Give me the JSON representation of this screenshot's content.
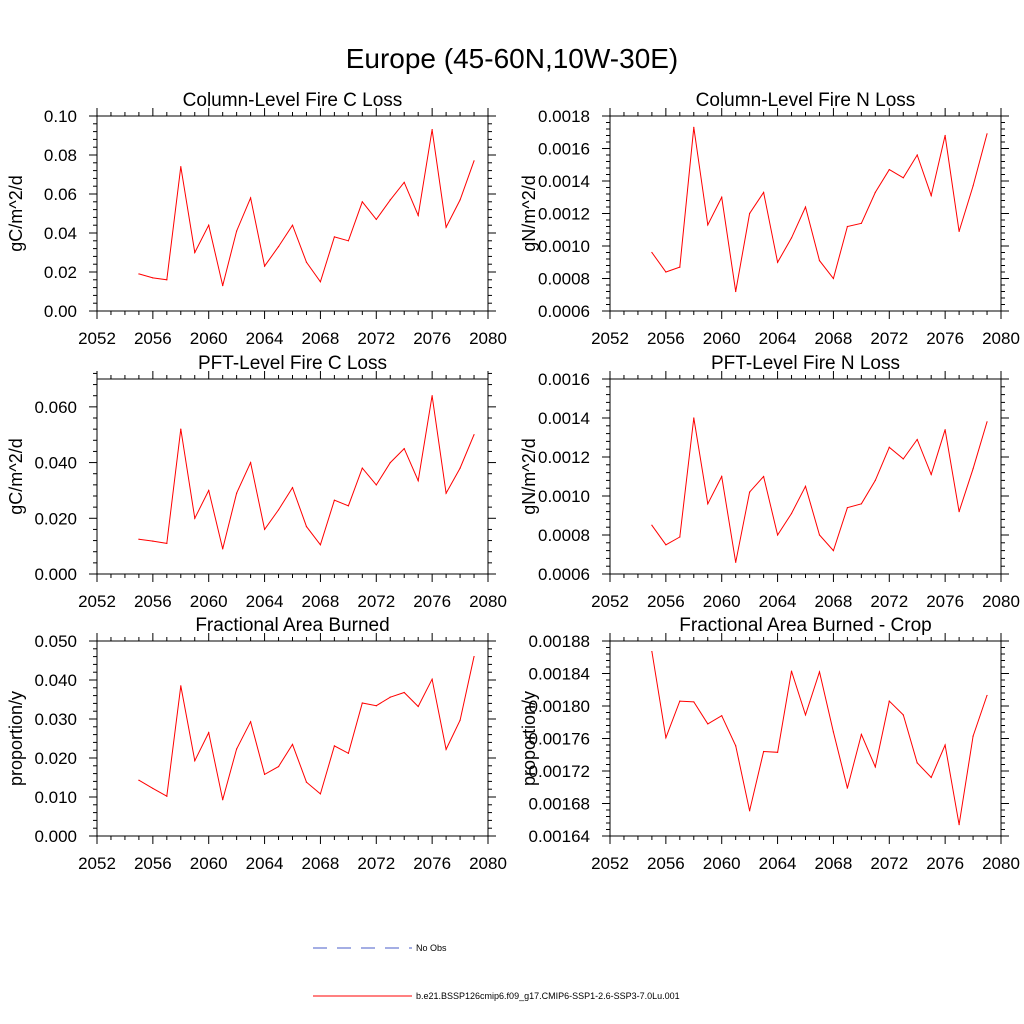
{
  "figure_title": "Europe (45-60N,10W-30E)",
  "legend": [
    {
      "label": "No Obs",
      "color": "#4a5cc8",
      "dash": true
    },
    {
      "label": "b.e21.BSSP126cmip6.f09_g17.CMIP6-SSP1-2.6-SSP3-7.0Lu.001",
      "color": "#ff0000",
      "dash": false
    }
  ],
  "chart_data": [
    {
      "type": "line",
      "title": "Column-Level Fire C Loss",
      "ylabel": "gC/m^2/d",
      "xlim": [
        2052,
        2080
      ],
      "xticks": [
        "2052",
        "2056",
        "2060",
        "2064",
        "2068",
        "2072",
        "2076",
        "2080"
      ],
      "ylim": [
        0.0,
        0.1
      ],
      "yticks": [
        "0.00",
        "0.02",
        "0.04",
        "0.06",
        "0.08",
        "0.10"
      ],
      "series": [
        {
          "color": "#ff0000",
          "x": [
            2055,
            2056,
            2057,
            2058,
            2059,
            2060,
            2061,
            2062,
            2063,
            2064,
            2065,
            2066,
            2067,
            2068,
            2069,
            2070,
            2071,
            2072,
            2073,
            2074,
            2075,
            2076,
            2077,
            2078,
            2079
          ],
          "y": [
            0.019,
            0.017,
            0.016,
            0.074,
            0.03,
            0.044,
            0.013,
            0.041,
            0.058,
            0.023,
            0.033,
            0.044,
            0.025,
            0.015,
            0.038,
            0.036,
            0.056,
            0.047,
            0.057,
            0.066,
            0.049,
            0.093,
            0.043,
            0.057,
            0.077
          ]
        }
      ]
    },
    {
      "type": "line",
      "title": "Column-Level Fire N Loss",
      "ylabel": "gN/m^2/d",
      "xlim": [
        2052,
        2080
      ],
      "xticks": [
        "2052",
        "2056",
        "2060",
        "2064",
        "2068",
        "2072",
        "2076",
        "2080"
      ],
      "ylim": [
        0.0006,
        0.0018
      ],
      "yticks": [
        "0.0006",
        "0.0008",
        "0.0010",
        "0.0012",
        "0.0014",
        "0.0016",
        "0.0018"
      ],
      "series": [
        {
          "color": "#ff0000",
          "x": [
            2055,
            2056,
            2057,
            2058,
            2059,
            2060,
            2061,
            2062,
            2063,
            2064,
            2065,
            2066,
            2067,
            2068,
            2069,
            2070,
            2071,
            2072,
            2073,
            2074,
            2075,
            2076,
            2077,
            2078,
            2079
          ],
          "y": [
            0.00096,
            0.00084,
            0.00087,
            0.00173,
            0.00113,
            0.0013,
            0.00072,
            0.0012,
            0.00133,
            0.0009,
            0.00105,
            0.00124,
            0.00091,
            0.0008,
            0.00112,
            0.00114,
            0.00133,
            0.00147,
            0.00142,
            0.00156,
            0.00131,
            0.00168,
            0.00109,
            0.00137,
            0.00169
          ]
        }
      ]
    },
    {
      "type": "line",
      "title": "PFT-Level Fire C Loss",
      "ylabel": "gC/m^2/d",
      "xlim": [
        2052,
        2080
      ],
      "xticks": [
        "2052",
        "2056",
        "2060",
        "2064",
        "2068",
        "2072",
        "2076",
        "2080"
      ],
      "ylim": [
        0.0,
        0.07
      ],
      "yticks": [
        "0.000",
        "0.020",
        "0.040",
        "0.060"
      ],
      "ytick_values": [
        0.0,
        0.02,
        0.04,
        0.06
      ],
      "series": [
        {
          "color": "#ff0000",
          "x": [
            2055,
            2056,
            2057,
            2058,
            2059,
            2060,
            2061,
            2062,
            2063,
            2064,
            2065,
            2066,
            2067,
            2068,
            2069,
            2070,
            2071,
            2072,
            2073,
            2074,
            2075,
            2076,
            2077,
            2078,
            2079
          ],
          "y": [
            0.0125,
            0.0118,
            0.011,
            0.052,
            0.02,
            0.03,
            0.009,
            0.029,
            0.04,
            0.016,
            0.023,
            0.031,
            0.017,
            0.0105,
            0.0265,
            0.0245,
            0.038,
            0.032,
            0.04,
            0.045,
            0.0335,
            0.064,
            0.029,
            0.038,
            0.05
          ]
        }
      ]
    },
    {
      "type": "line",
      "title": "PFT-Level Fire N Loss",
      "ylabel": "gN/m^2/d",
      "xlim": [
        2052,
        2080
      ],
      "xticks": [
        "2052",
        "2056",
        "2060",
        "2064",
        "2068",
        "2072",
        "2076",
        "2080"
      ],
      "ylim": [
        0.0006,
        0.0016
      ],
      "yticks": [
        "0.0006",
        "0.0008",
        "0.0010",
        "0.0012",
        "0.0014",
        "0.0016"
      ],
      "series": [
        {
          "color": "#ff0000",
          "x": [
            2055,
            2056,
            2057,
            2058,
            2059,
            2060,
            2061,
            2062,
            2063,
            2064,
            2065,
            2066,
            2067,
            2068,
            2069,
            2070,
            2071,
            2072,
            2073,
            2074,
            2075,
            2076,
            2077,
            2078,
            2079
          ],
          "y": [
            0.00085,
            0.00075,
            0.00079,
            0.0014,
            0.00096,
            0.0011,
            0.00066,
            0.00102,
            0.0011,
            0.0008,
            0.00091,
            0.00105,
            0.0008,
            0.00072,
            0.00094,
            0.00096,
            0.00108,
            0.00125,
            0.00119,
            0.00129,
            0.00111,
            0.00134,
            0.00092,
            0.00114,
            0.00138
          ]
        }
      ]
    },
    {
      "type": "line",
      "title": "Fractional Area Burned",
      "ylabel": "proportion/y",
      "xlim": [
        2052,
        2080
      ],
      "xticks": [
        "2052",
        "2056",
        "2060",
        "2064",
        "2068",
        "2072",
        "2076",
        "2080"
      ],
      "ylim": [
        0.0,
        0.05
      ],
      "yticks": [
        "0.000",
        "0.010",
        "0.020",
        "0.030",
        "0.040",
        "0.050"
      ],
      "series": [
        {
          "color": "#ff0000",
          "x": [
            2055,
            2056,
            2057,
            2058,
            2059,
            2060,
            2061,
            2062,
            2063,
            2064,
            2065,
            2066,
            2067,
            2068,
            2069,
            2070,
            2071,
            2072,
            2073,
            2074,
            2075,
            2076,
            2077,
            2078,
            2079
          ],
          "y": [
            0.0143,
            0.0122,
            0.0102,
            0.0385,
            0.0193,
            0.0265,
            0.0093,
            0.0223,
            0.0293,
            0.0158,
            0.0178,
            0.0235,
            0.0138,
            0.0108,
            0.0231,
            0.0212,
            0.0341,
            0.0334,
            0.0356,
            0.0368,
            0.0332,
            0.0402,
            0.0222,
            0.0297,
            0.046
          ]
        }
      ]
    },
    {
      "type": "line",
      "title": "Fractional Area Burned - Crop",
      "ylabel": "proportion/y",
      "xlim": [
        2052,
        2080
      ],
      "xticks": [
        "2052",
        "2056",
        "2060",
        "2064",
        "2068",
        "2072",
        "2076",
        "2080"
      ],
      "ylim": [
        0.00164,
        0.00188
      ],
      "yticks": [
        "0.00164",
        "0.00168",
        "0.00172",
        "0.00176",
        "0.00180",
        "0.00184",
        "0.00188"
      ],
      "series": [
        {
          "color": "#ff0000",
          "x": [
            2055,
            2056,
            2057,
            2058,
            2059,
            2060,
            2061,
            2062,
            2063,
            2064,
            2065,
            2066,
            2067,
            2068,
            2069,
            2070,
            2071,
            2072,
            2073,
            2074,
            2075,
            2076,
            2077,
            2078,
            2079
          ],
          "y": [
            0.001867,
            0.001761,
            0.001806,
            0.001805,
            0.001778,
            0.001788,
            0.001751,
            0.001671,
            0.001744,
            0.001743,
            0.001843,
            0.001789,
            0.001842,
            0.001768,
            0.001699,
            0.001765,
            0.001725,
            0.001806,
            0.001789,
            0.00173,
            0.001712,
            0.001752,
            0.001654,
            0.001763,
            0.001813
          ]
        }
      ]
    }
  ]
}
